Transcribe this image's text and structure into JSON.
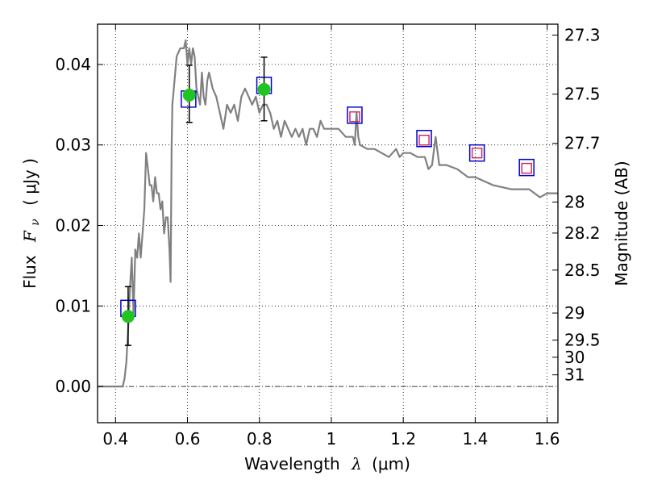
{
  "chart_data": {
    "type": "scatter",
    "title": "",
    "xlabel": "Wavelength",
    "xlabel_symbol": "λ",
    "xlabel_unit": "(μm)",
    "ylabel": "Flux",
    "ylabel_symbol": "F",
    "ylabel_subscript": "ν",
    "ylabel_unit": "( μJy )",
    "y2label": "Magnitude (AB)",
    "xlim": [
      0.35,
      1.63
    ],
    "ylim": [
      -0.0045,
      0.045
    ],
    "grid": true,
    "x_ticks": [
      0.4,
      0.6,
      0.8,
      1.0,
      1.2,
      1.4,
      1.6
    ],
    "x_tick_labels": [
      "0.4",
      "0.6",
      "0.8",
      "1",
      "1.2",
      "1.4",
      "1.6"
    ],
    "y_ticks": [
      0.0,
      0.01,
      0.02,
      0.03,
      0.04
    ],
    "y_tick_labels": [
      "0.00",
      "0.01",
      "0.02",
      "0.03",
      "0.04"
    ],
    "mag_ticks": [
      "27.3",
      "27.5",
      "27.7",
      "28",
      "28.2",
      "28.5",
      "29",
      "29.5",
      "30",
      "31"
    ],
    "series": [
      {
        "kind": "line",
        "color": "#808080",
        "x": [
          0.35,
          0.41,
          0.42,
          0.425,
          0.43,
          0.435,
          0.44,
          0.445,
          0.45,
          0.455,
          0.46,
          0.465,
          0.47,
          0.475,
          0.48,
          0.485,
          0.49,
          0.495,
          0.5,
          0.505,
          0.51,
          0.515,
          0.52,
          0.525,
          0.53,
          0.535,
          0.54,
          0.545,
          0.55,
          0.553,
          0.556,
          0.558,
          0.562,
          0.57,
          0.58,
          0.59,
          0.595,
          0.6,
          0.605,
          0.61,
          0.615,
          0.62,
          0.625,
          0.63,
          0.635,
          0.64,
          0.645,
          0.65,
          0.655,
          0.66,
          0.67,
          0.68,
          0.69,
          0.7,
          0.71,
          0.72,
          0.73,
          0.74,
          0.75,
          0.76,
          0.77,
          0.78,
          0.79,
          0.8,
          0.81,
          0.82,
          0.83,
          0.84,
          0.85,
          0.86,
          0.87,
          0.88,
          0.89,
          0.9,
          0.91,
          0.92,
          0.93,
          0.94,
          0.95,
          0.96,
          0.97,
          0.98,
          0.99,
          1.0,
          1.02,
          1.04,
          1.06,
          1.065,
          1.07,
          1.075,
          1.08,
          1.1,
          1.12,
          1.14,
          1.16,
          1.18,
          1.19,
          1.2,
          1.22,
          1.24,
          1.26,
          1.27,
          1.28,
          1.29,
          1.3,
          1.32,
          1.35,
          1.38,
          1.4,
          1.45,
          1.5,
          1.55,
          1.58,
          1.6,
          1.63
        ],
        "y": [
          0.0,
          0.0,
          0.0,
          0.001,
          0.003,
          0.007,
          0.012,
          0.016,
          0.009,
          0.017,
          0.016,
          0.019,
          0.016,
          0.019,
          0.022,
          0.029,
          0.027,
          0.025,
          0.025,
          0.023,
          0.026,
          0.024,
          0.024,
          0.022,
          0.023,
          0.019,
          0.021,
          0.021,
          0.017,
          0.013,
          0.03,
          0.035,
          0.037,
          0.041,
          0.042,
          0.042,
          0.043,
          0.04,
          0.042,
          0.04,
          0.042,
          0.041,
          0.037,
          0.036,
          0.035,
          0.039,
          0.036,
          0.035,
          0.038,
          0.039,
          0.037,
          0.036,
          0.034,
          0.032,
          0.035,
          0.034,
          0.035,
          0.033,
          0.036,
          0.037,
          0.036,
          0.035,
          0.036,
          0.034,
          0.035,
          0.035,
          0.034,
          0.032,
          0.033,
          0.031,
          0.033,
          0.032,
          0.031,
          0.032,
          0.031,
          0.032,
          0.03,
          0.032,
          0.032,
          0.031,
          0.033,
          0.032,
          0.032,
          0.032,
          0.032,
          0.031,
          0.031,
          0.03,
          0.034,
          0.031,
          0.03,
          0.0295,
          0.0295,
          0.029,
          0.0285,
          0.0295,
          0.0285,
          0.029,
          0.029,
          0.0285,
          0.0285,
          0.027,
          0.0275,
          0.031,
          0.0275,
          0.0275,
          0.027,
          0.026,
          0.026,
          0.025,
          0.0245,
          0.0245,
          0.0235,
          0.024,
          0.024
        ]
      },
      {
        "kind": "markers",
        "marker": "square",
        "color": "#0000cc",
        "x": [
          0.435,
          0.603,
          0.813,
          1.065,
          1.258,
          1.405,
          1.543
        ],
        "y": [
          0.0097,
          0.0357,
          0.0374,
          0.0337,
          0.0308,
          0.029,
          0.0272
        ]
      },
      {
        "kind": "markers",
        "marker": "small-square",
        "color": "#d02060",
        "x": [
          1.065,
          1.258,
          1.405,
          1.543
        ],
        "y": [
          0.0335,
          0.0306,
          0.029,
          0.0271
        ]
      },
      {
        "kind": "markers",
        "marker": "circle",
        "color": "#22c422",
        "x": [
          0.435,
          0.605,
          0.813
        ],
        "y": [
          0.0087,
          0.0362,
          0.0369
        ],
        "yerr_low": [
          0.0051,
          0.0328,
          0.033
        ],
        "yerr_high": [
          0.0124,
          0.0399,
          0.0409
        ]
      }
    ]
  }
}
